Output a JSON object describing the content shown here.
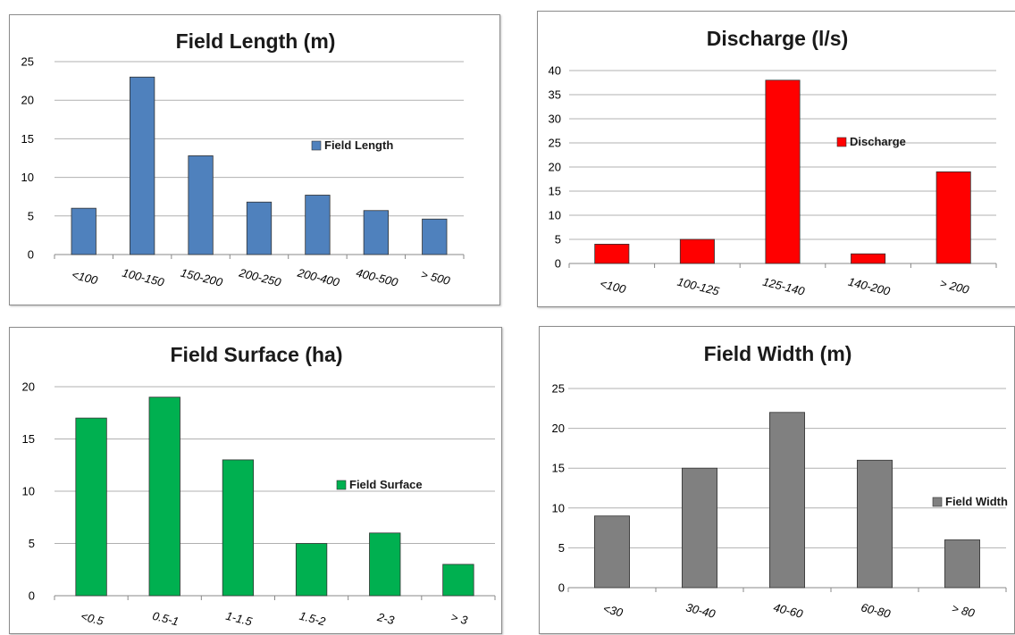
{
  "chart_data": [
    {
      "type": "bar",
      "title": "Field Length (m)",
      "categories": [
        "<100",
        "100-150",
        "150-200",
        "200-250",
        "200-400",
        "400-500",
        "> 500"
      ],
      "series": [
        {
          "name": "Field Length",
          "values": [
            6,
            23,
            12.8,
            6.8,
            7.7,
            5.7,
            4.6
          ]
        }
      ],
      "ylim": [
        0,
        25
      ],
      "yticks": [
        0,
        5,
        10,
        15,
        20,
        25
      ],
      "color": "#4f81bd",
      "grid": true,
      "legend": "right"
    },
    {
      "type": "bar",
      "title": "Discharge (l/s)",
      "categories": [
        "<100",
        "100-125",
        "125-140",
        "140-200",
        "> 200"
      ],
      "series": [
        {
          "name": "Discharge",
          "values": [
            4,
            5,
            38,
            2,
            19
          ]
        }
      ],
      "ylim": [
        0,
        40
      ],
      "yticks": [
        0,
        5,
        10,
        15,
        20,
        25,
        30,
        35,
        40
      ],
      "color": "#ff0000",
      "grid": true,
      "legend": "right"
    },
    {
      "type": "bar",
      "title": "Field Surface (ha)",
      "categories": [
        "<0.5",
        "0.5-1",
        "1-1.5",
        "1.5-2",
        "2-3",
        "> 3"
      ],
      "series": [
        {
          "name": "Field Surface",
          "values": [
            17,
            19,
            13,
            5,
            6,
            3
          ]
        }
      ],
      "ylim": [
        0,
        20
      ],
      "yticks": [
        0,
        5,
        10,
        15,
        20
      ],
      "color": "#00b050",
      "grid": true,
      "legend": "right"
    },
    {
      "type": "bar",
      "title": "Field Width (m)",
      "categories": [
        "<30",
        "30-40",
        "40-60",
        "60-80",
        "> 80"
      ],
      "series": [
        {
          "name": "Field Width",
          "values": [
            9,
            15,
            22,
            16,
            6
          ]
        }
      ],
      "ylim": [
        0,
        25
      ],
      "yticks": [
        0,
        5,
        10,
        15,
        20,
        25
      ],
      "color": "#808080",
      "grid": true,
      "legend": "right"
    }
  ]
}
